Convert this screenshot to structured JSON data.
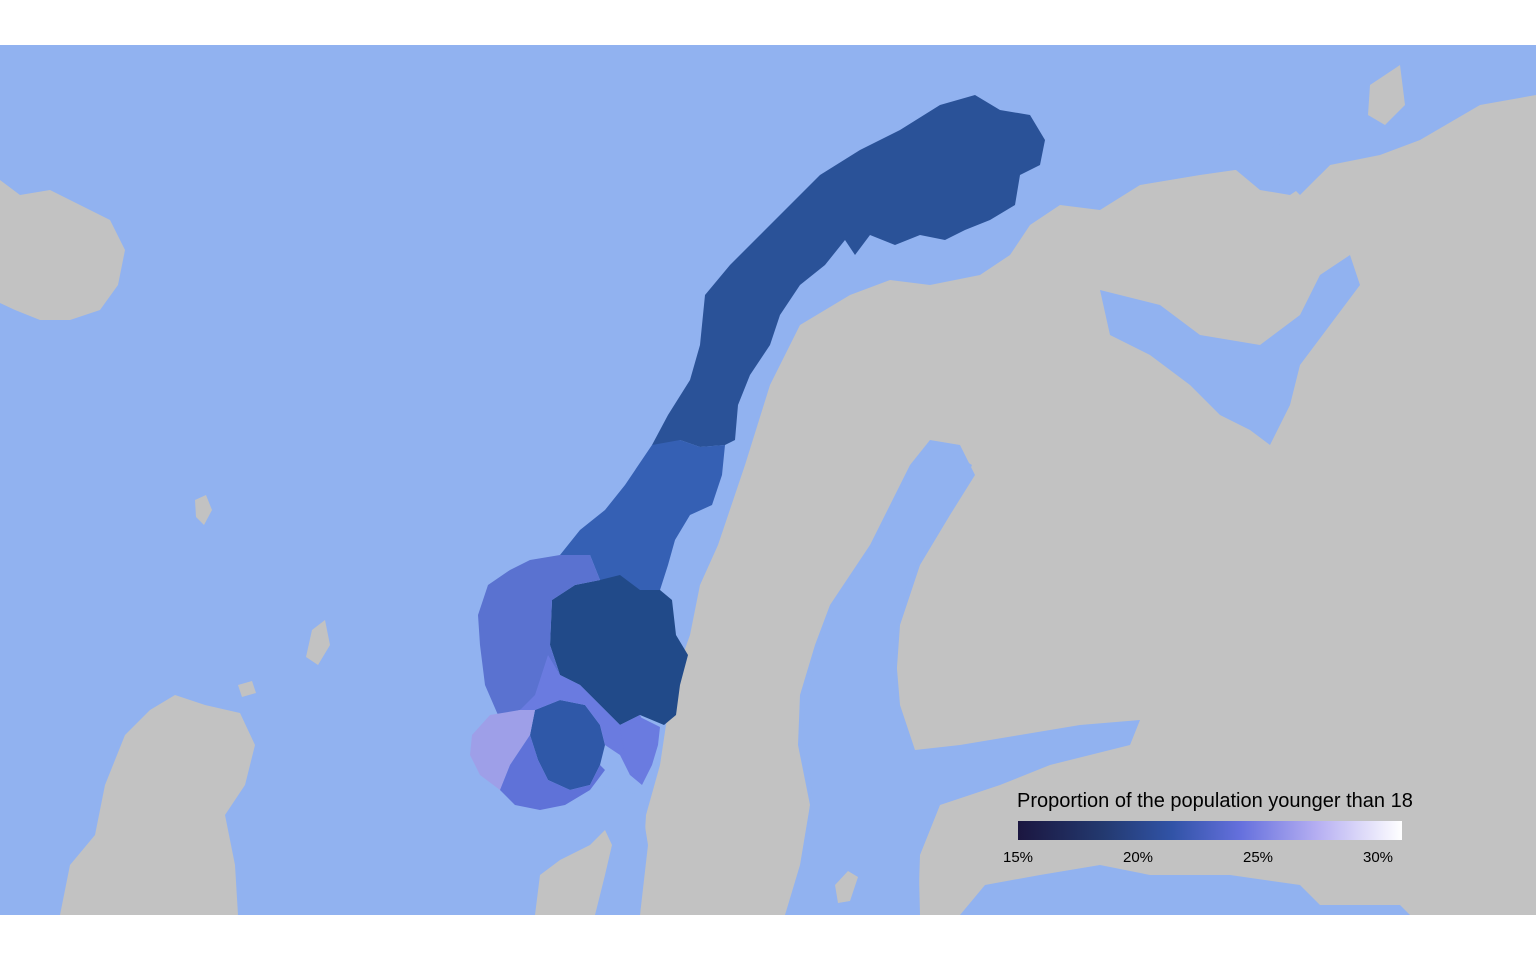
{
  "colors": {
    "sea": "#91b2f0",
    "land": "#c2c2c2",
    "region_north": "#2a5298",
    "region_mid": "#3560b4",
    "region_inland": "#214a89",
    "region_west": "#5a72d0",
    "region_telemark": "#2f58a8",
    "region_south": "#5f72d8",
    "region_southwest": "#9e9fe8",
    "region_east": "#6a7be0"
  },
  "legend": {
    "title": "Proportion of the population younger than 18",
    "ticks": [
      "15%",
      "20%",
      "25%",
      "30%"
    ],
    "range": [
      15,
      31
    ]
  }
}
